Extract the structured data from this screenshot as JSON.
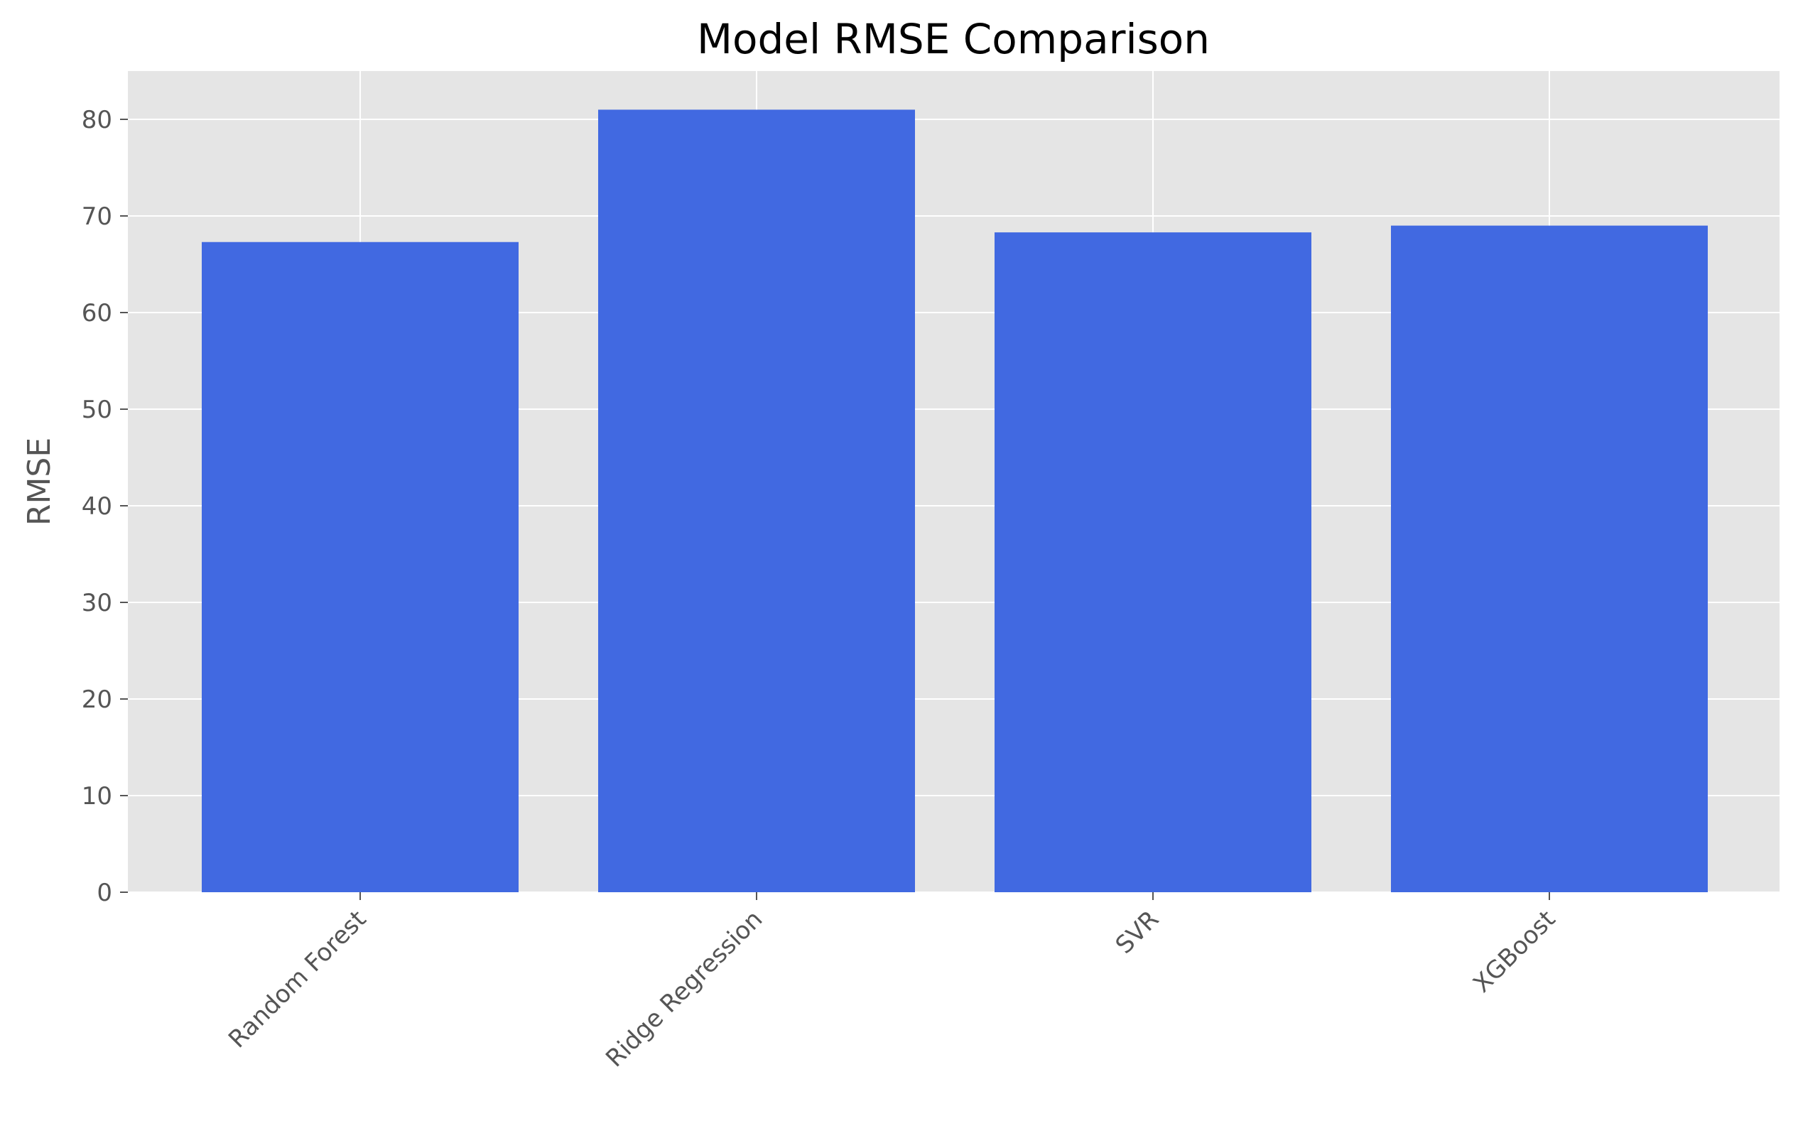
{
  "chart_data": {
    "type": "bar",
    "title": "Model RMSE Comparison",
    "xlabel": "",
    "ylabel": "RMSE",
    "categories": [
      "Random Forest",
      "Ridge Regression",
      "SVR",
      "XGBoost"
    ],
    "values": [
      67.3,
      81.0,
      68.3,
      69.0
    ],
    "ylim": [
      0,
      85
    ],
    "yticks": [
      "0",
      "10",
      "20",
      "30",
      "40",
      "50",
      "60",
      "70",
      "80"
    ],
    "grid": true,
    "legend": "none",
    "colors": {
      "bar": "#4169e1",
      "plot_background": "#e5e5e5",
      "grid": "#ffffff",
      "text": "#555555",
      "title": "#000000"
    }
  }
}
